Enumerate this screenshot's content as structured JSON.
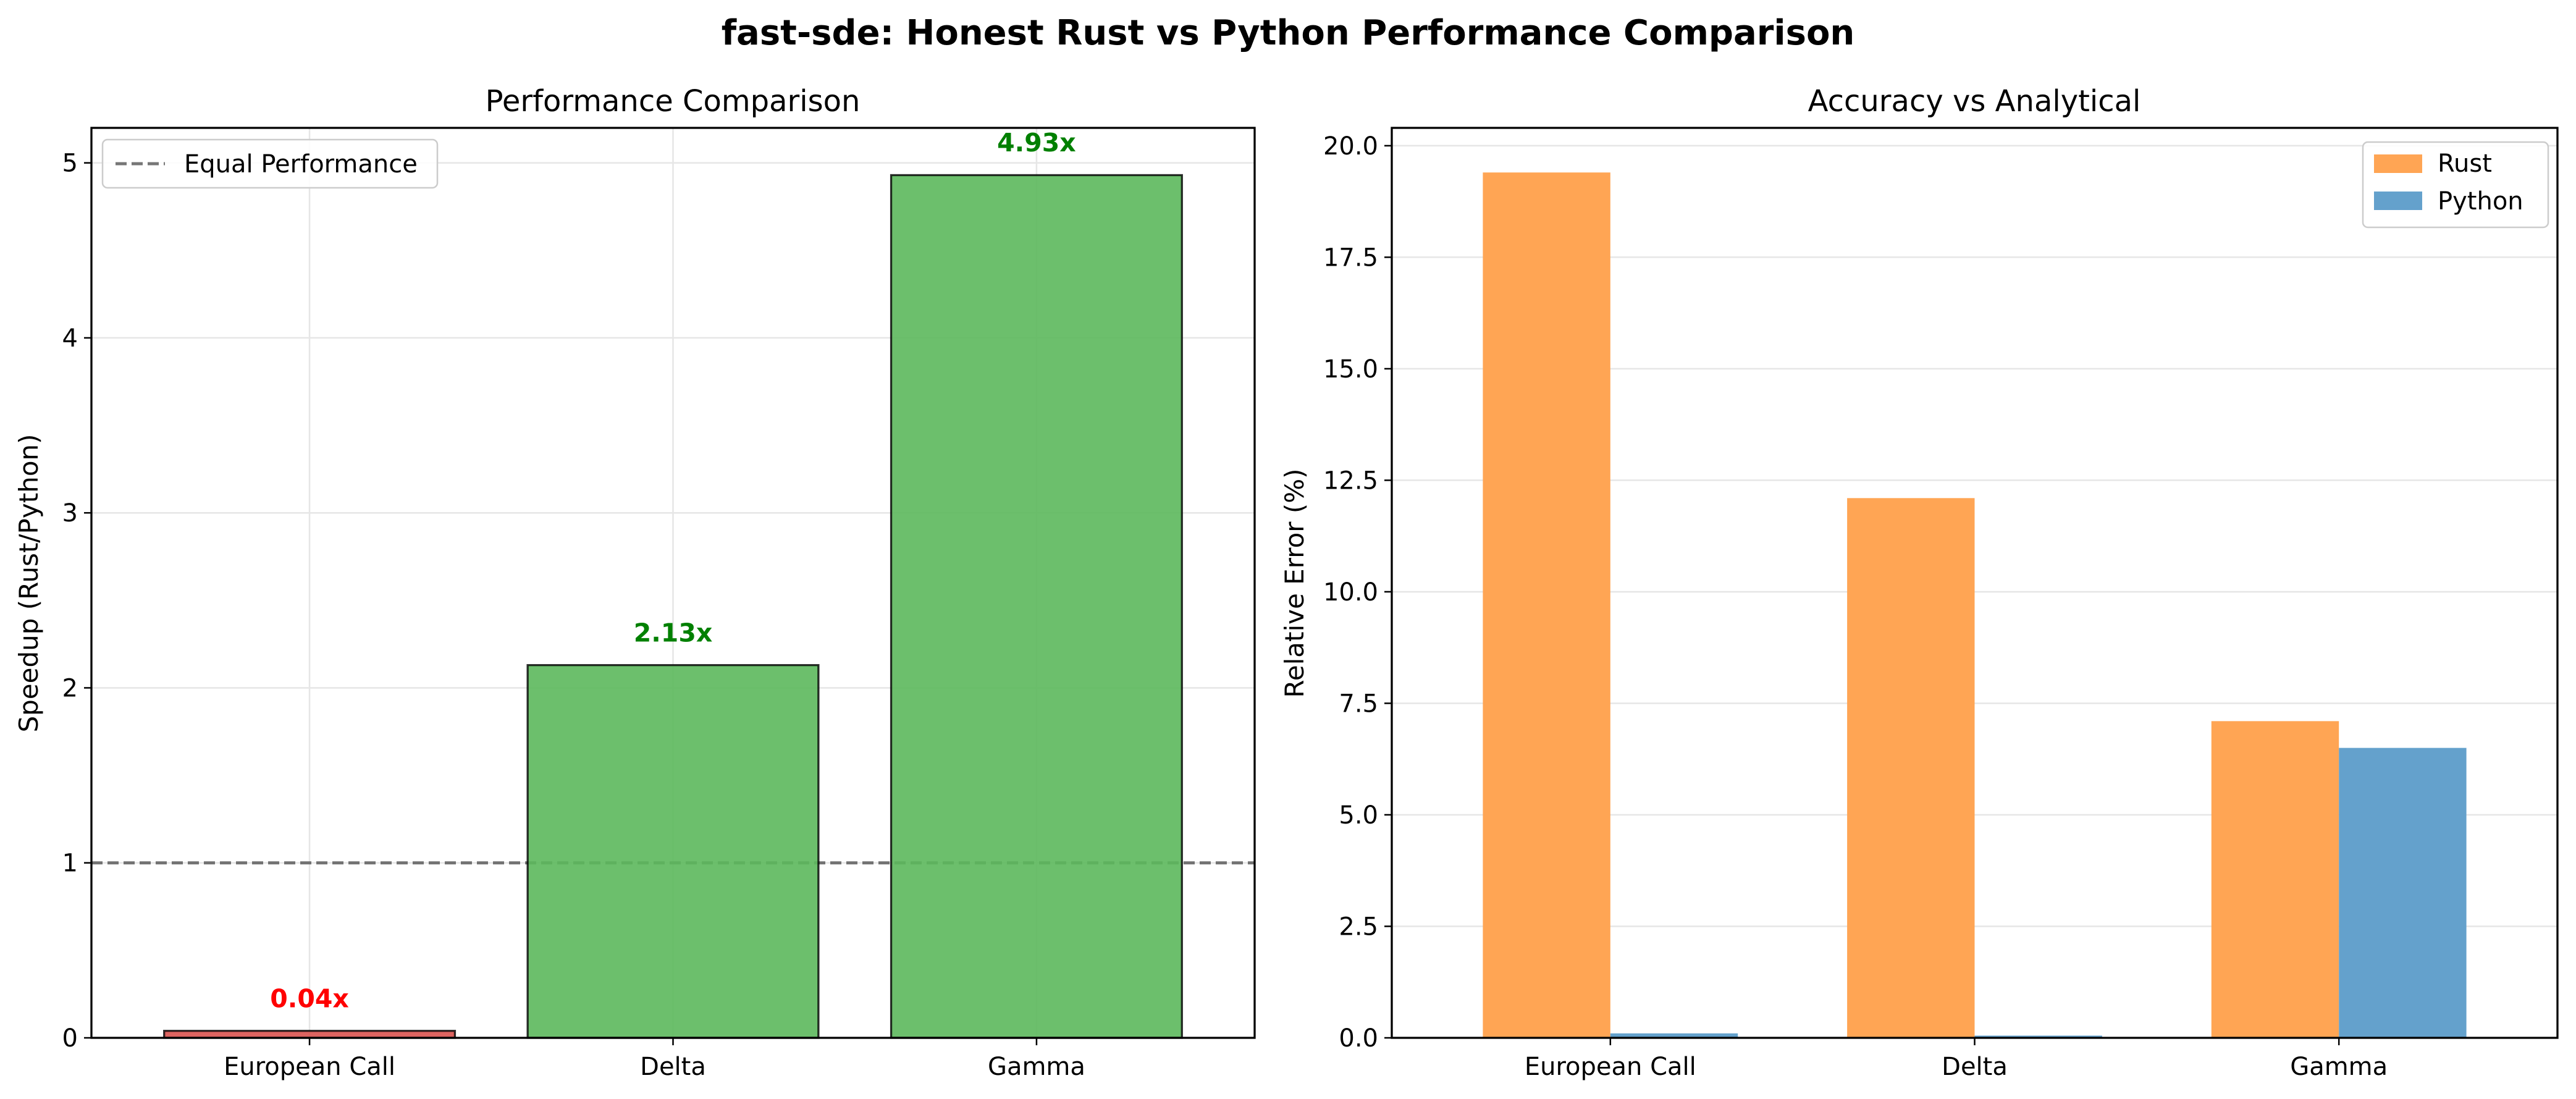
{
  "figure": {
    "title": "fast-sde: Honest Rust vs Python Performance Comparison"
  },
  "chart_data": [
    {
      "type": "bar",
      "title": "Performance Comparison",
      "xlabel": "",
      "ylabel": "Speedup (Rust/Python)",
      "categories": [
        "European Call",
        "Delta",
        "Gamma"
      ],
      "values": [
        0.04,
        2.13,
        4.93
      ],
      "value_labels": [
        "0.04x",
        "2.13x",
        "4.93x"
      ],
      "bar_colors": [
        "#d9534f",
        "#5cb85c",
        "#5cb85c"
      ],
      "label_colors": [
        "#ff0000",
        "#008000",
        "#008000"
      ],
      "ylim": [
        0,
        5.2
      ],
      "yticks": [
        0,
        1,
        2,
        3,
        4,
        5
      ],
      "ytick_labels": [
        "0",
        "1",
        "2",
        "3",
        "4",
        "5"
      ],
      "reference_line": {
        "y": 1,
        "label": "Equal Performance",
        "style": "dashed",
        "color": "#555555"
      },
      "grid": true,
      "legend_position": "top-left"
    },
    {
      "type": "bar",
      "title": "Accuracy vs Analytical",
      "xlabel": "",
      "ylabel": "Relative Error (%)",
      "categories": [
        "European Call",
        "Delta",
        "Gamma"
      ],
      "series": [
        {
          "name": "Rust",
          "color": "#ffa554",
          "values": [
            19.4,
            12.1,
            7.1
          ]
        },
        {
          "name": "Python",
          "color": "#64a1cc",
          "values": [
            0.1,
            0.05,
            6.5
          ]
        }
      ],
      "ylim": [
        0,
        20.4
      ],
      "yticks": [
        0,
        2.5,
        5,
        7.5,
        10,
        12.5,
        15,
        17.5,
        20
      ],
      "ytick_labels": [
        "0.0",
        "2.5",
        "5.0",
        "7.5",
        "10.0",
        "12.5",
        "15.0",
        "17.5",
        "20.0"
      ],
      "grid": true,
      "legend_position": "top-right"
    }
  ]
}
